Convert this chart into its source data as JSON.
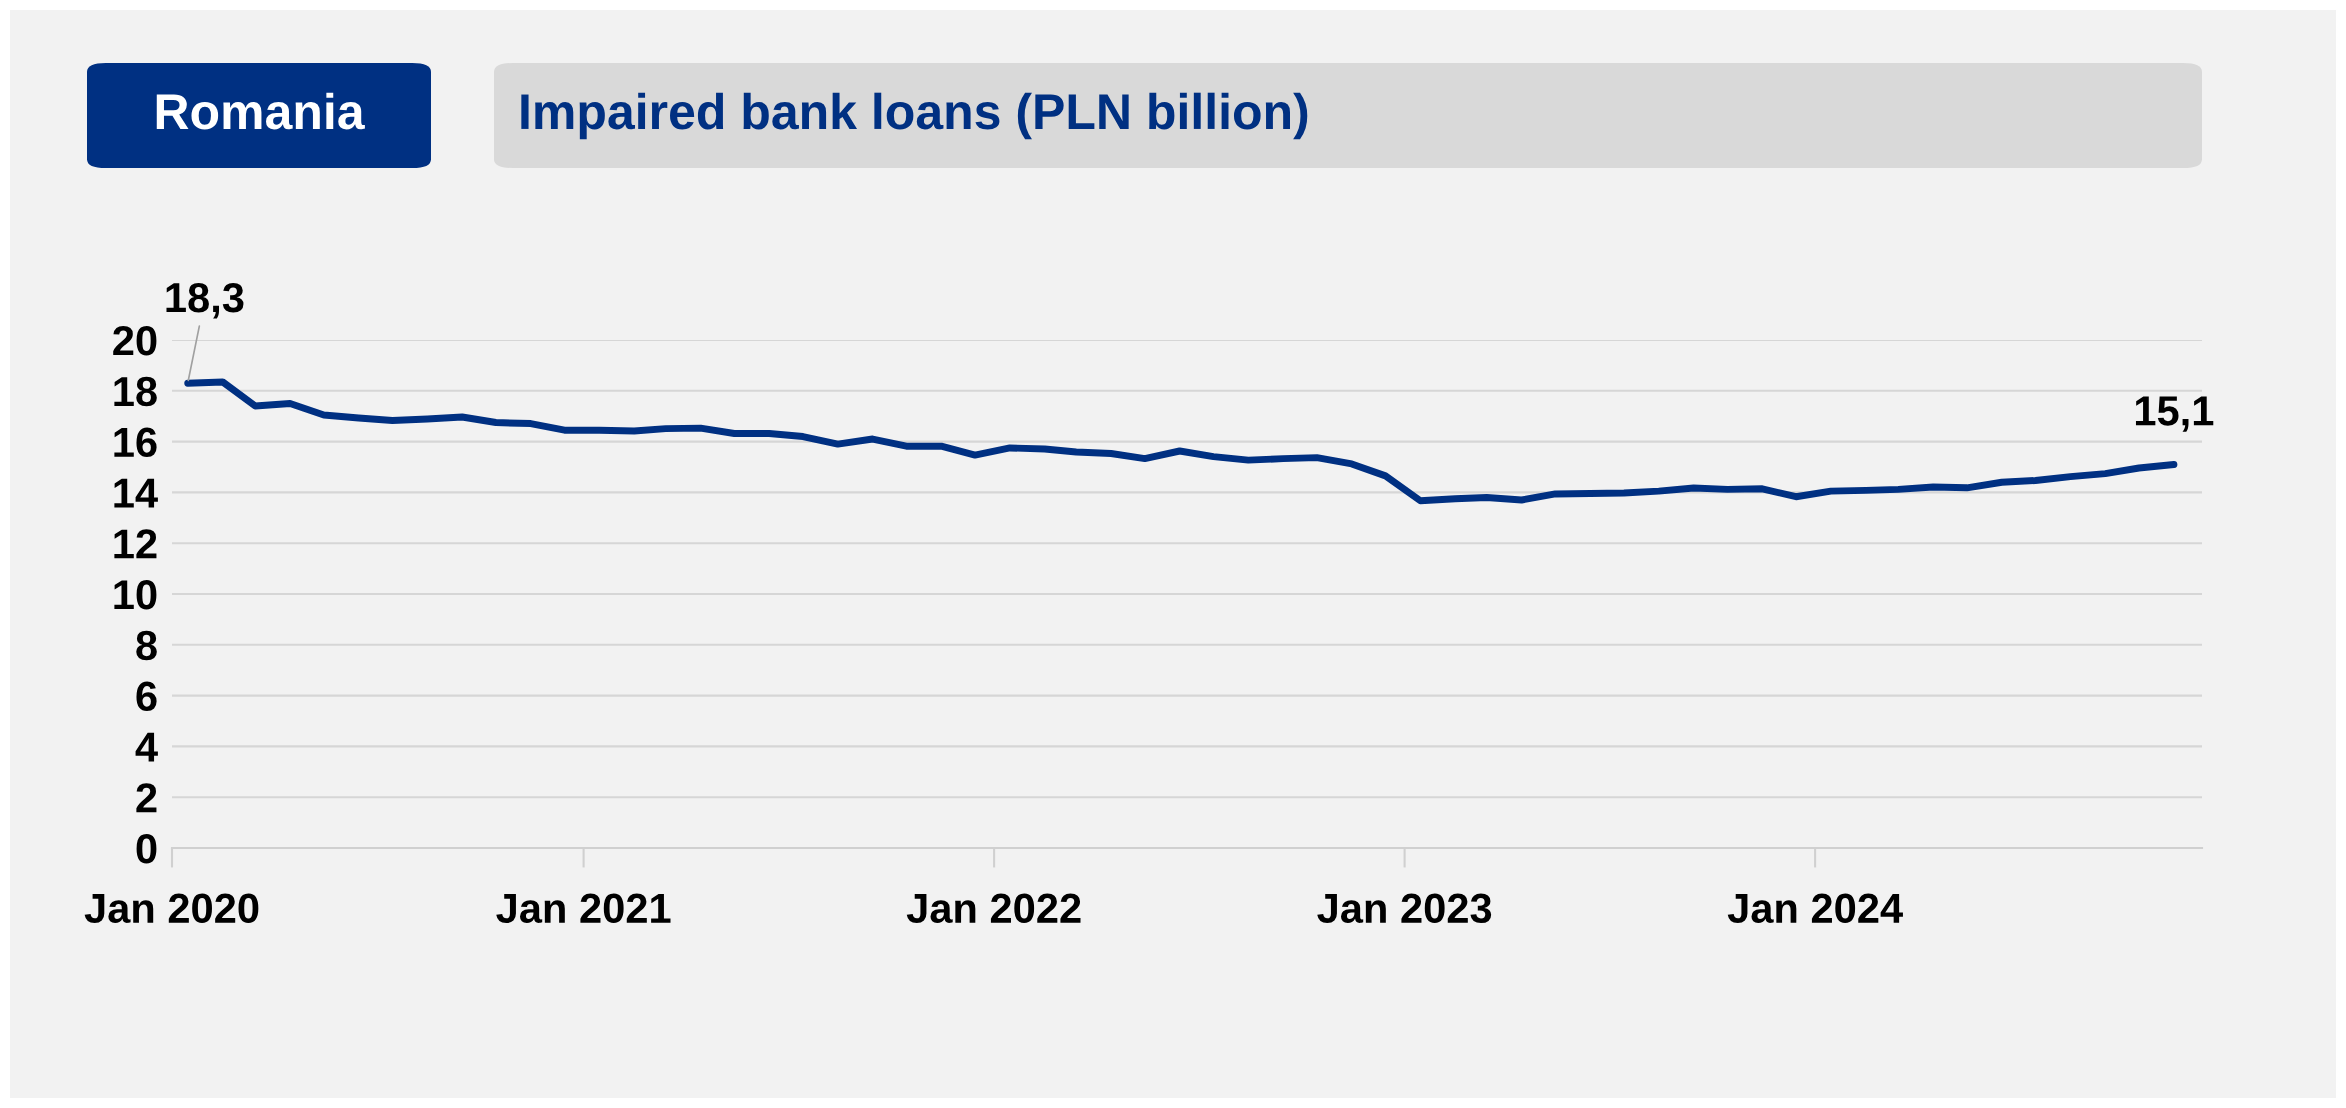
{
  "chart_data": {
    "type": "line",
    "subtitle": "Romania",
    "title": "Impaired bank loans (PLN billion)",
    "x": [
      "2020-01-15",
      "2020-02-15",
      "2020-03-15",
      "2020-04-15",
      "2020-05-15",
      "2020-06-15",
      "2020-07-15",
      "2020-08-15",
      "2020-09-15",
      "2020-10-15",
      "2020-11-15",
      "2020-12-15",
      "2021-01-15",
      "2021-02-15",
      "2021-03-15",
      "2021-04-15",
      "2021-05-15",
      "2021-06-15",
      "2021-07-15",
      "2021-08-15",
      "2021-09-15",
      "2021-10-15",
      "2021-11-15",
      "2021-12-15",
      "2022-01-15",
      "2022-02-15",
      "2022-03-15",
      "2022-04-15",
      "2022-05-15",
      "2022-06-15",
      "2022-07-15",
      "2022-08-15",
      "2022-09-15",
      "2022-10-15",
      "2022-11-15",
      "2022-12-15",
      "2023-01-15",
      "2023-02-15",
      "2023-03-15",
      "2023-04-15",
      "2023-05-15",
      "2023-06-15",
      "2023-07-15",
      "2023-08-15",
      "2023-09-15",
      "2023-10-15",
      "2023-11-15",
      "2023-12-15",
      "2024-01-15",
      "2024-02-15",
      "2024-03-15",
      "2024-04-15",
      "2024-05-15",
      "2024-06-15",
      "2024-07-15",
      "2024-08-15",
      "2024-09-15",
      "2024-10-15",
      "2024-11-15"
    ],
    "series": [
      {
        "color": "#003082",
        "values": [
          18.3,
          18.35,
          17.4,
          17.5,
          17.05,
          16.93,
          16.83,
          16.89,
          16.97,
          16.75,
          16.71,
          16.45,
          16.45,
          16.42,
          16.51,
          16.53,
          16.32,
          16.32,
          16.2,
          15.9,
          16.1,
          15.82,
          15.82,
          15.47,
          15.75,
          15.71,
          15.59,
          15.53,
          15.33,
          15.63,
          15.41,
          15.27,
          15.33,
          15.37,
          15.12,
          14.65,
          13.67,
          13.75,
          13.8,
          13.7,
          13.94,
          13.96,
          13.98,
          14.05,
          14.17,
          14.12,
          14.14,
          13.83,
          14.05,
          14.08,
          14.12,
          14.21,
          14.18,
          14.4,
          14.47,
          14.62,
          14.74,
          14.96,
          15.1
        ]
      }
    ],
    "annotations": [
      {
        "text": "18,3",
        "x": "2020-01-15",
        "y": 18.3
      },
      {
        "text": "15,1",
        "x": "2024-11-15",
        "y": 15.1
      }
    ],
    "xlim": [
      "2020-01-01",
      "2024-12-10"
    ],
    "xticks": [
      {
        "value": "2020-01-01",
        "label": "Jan 2020"
      },
      {
        "value": "2021-01-01",
        "label": "Jan 2021"
      },
      {
        "value": "2022-01-01",
        "label": "Jan 2022"
      },
      {
        "value": "2023-01-01",
        "label": "Jan 2023"
      },
      {
        "value": "2024-01-01",
        "label": "Jan 2024"
      }
    ],
    "ylim": [
      0,
      20
    ],
    "yticks": [
      0,
      2,
      4,
      6,
      8,
      10,
      12,
      14,
      16,
      18,
      20
    ],
    "grid": "y",
    "legend": false,
    "marker": "none",
    "line_style": "solid"
  }
}
